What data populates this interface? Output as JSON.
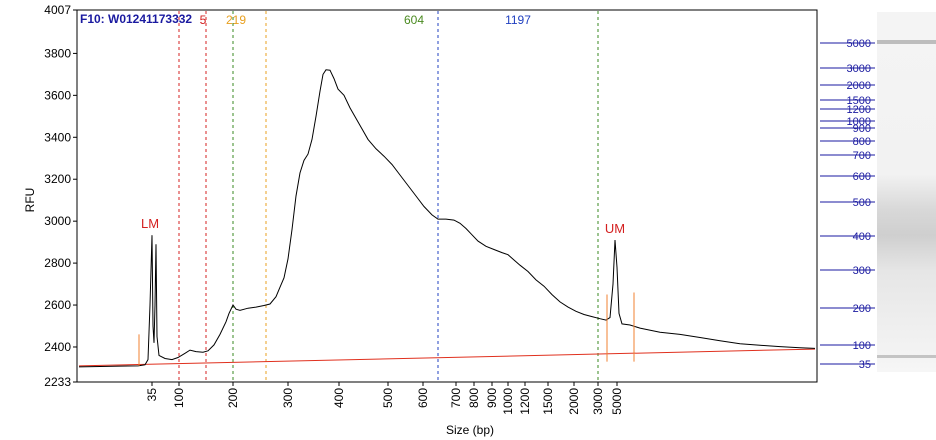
{
  "chart_data": {
    "type": "line",
    "title": "F10: W01241173332",
    "xlabel": "Size (bp)",
    "ylabel": "RFU",
    "ylim": [
      2233,
      4007
    ],
    "y_ticks": [
      "4007",
      "3800",
      "3600",
      "3400",
      "3200",
      "3000",
      "2800",
      "2600",
      "2400",
      "2233"
    ],
    "x_tick_labels": [
      "35",
      "100",
      "200",
      "300",
      "400",
      "500",
      "600",
      "700",
      "800",
      "900",
      "1000",
      "1200",
      "1500",
      "2000",
      "3000",
      "5000"
    ],
    "series": [
      {
        "name": "",
        "color": "#000000",
        "points": [
          [
            "35",
            2405
          ],
          [
            "55",
            2933
          ],
          [
            "100",
            2350
          ],
          [
            "150",
            2380
          ],
          [
            "200",
            2560
          ],
          [
            "219",
            2595
          ],
          [
            "260",
            2600
          ],
          [
            "300",
            2680
          ],
          [
            "340",
            3250
          ],
          [
            "400",
            3720
          ],
          [
            "430",
            3620
          ],
          [
            "500",
            3340
          ],
          [
            "604",
            3010
          ],
          [
            "700",
            2970
          ],
          [
            "900",
            2860
          ],
          [
            "1197",
            2700
          ],
          [
            "2000",
            2560
          ],
          [
            "3000",
            2520
          ],
          [
            "5000",
            2910
          ],
          [
            "6000",
            2480
          ],
          [
            "10000",
            2390
          ]
        ]
      },
      {
        "name": "",
        "color": "#e0301e",
        "points": [
          [
            "1",
            2310
          ],
          [
            "10000",
            2390
          ]
        ]
      }
    ],
    "markers": [
      {
        "label": "LM",
        "color": "#d42020",
        "peak_rfu": 2933
      },
      {
        "label": "UM",
        "color": "#d42020",
        "peak_rfu": 2910
      }
    ],
    "peak_labels": [
      {
        "text": "5",
        "color": "#d42020"
      },
      {
        "text": "219",
        "color": "#e8a020"
      },
      {
        "text": "604",
        "color": "#4a8a20"
      },
      {
        "text": "1197",
        "color": "#2040c0"
      }
    ],
    "ladder_labels": [
      "5000",
      "3000",
      "2000",
      "1500",
      "1200",
      "1000",
      "900",
      "800",
      "700",
      "600",
      "500",
      "400",
      "300",
      "200",
      "100",
      "35"
    ],
    "grid": false,
    "legend": "none"
  }
}
